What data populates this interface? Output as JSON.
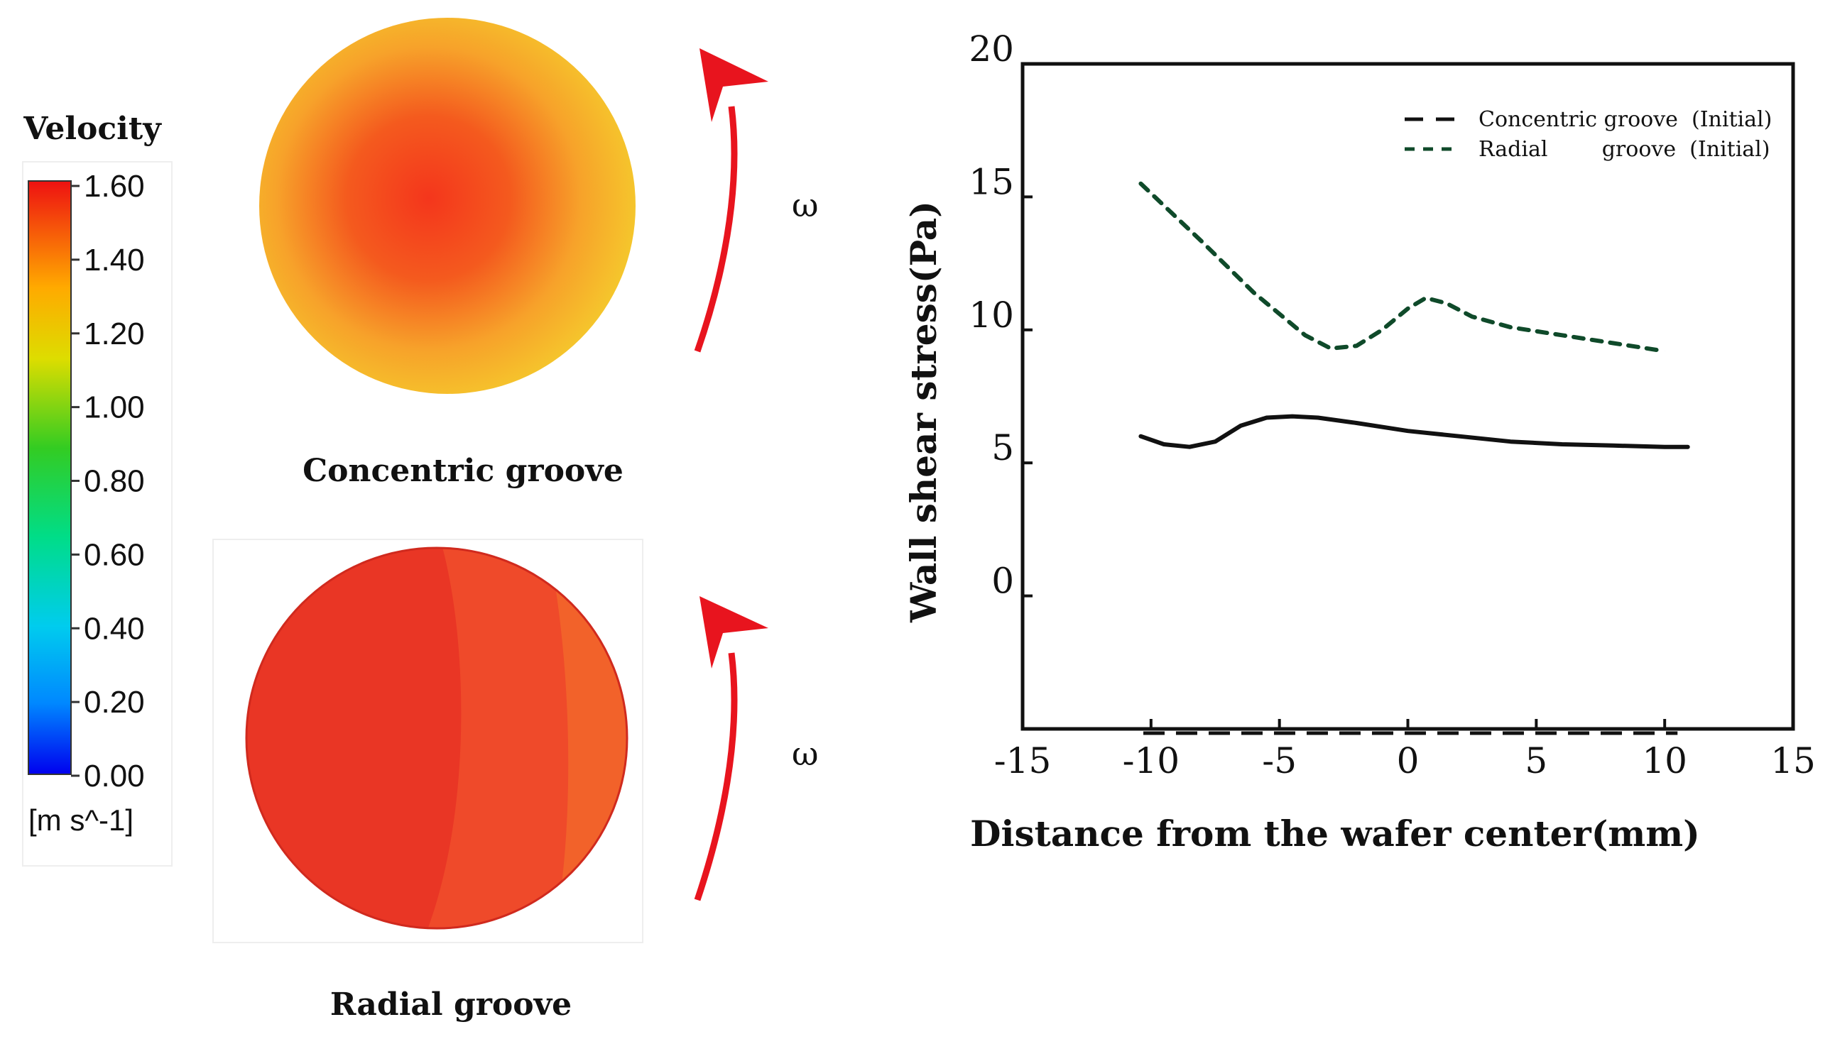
{
  "colorbar": {
    "title": "Velocity",
    "ticks": [
      "1.60",
      "1.40",
      "1.20",
      "1.00",
      "0.80",
      "0.60",
      "0.40",
      "0.20",
      "0.00"
    ],
    "unit": "[m s^-1]",
    "min": 0.0,
    "max": 1.6
  },
  "panels": {
    "concentric": {
      "label": "Concentric groove",
      "omega": "ω"
    },
    "radial": {
      "label": "Radial groove",
      "omega": "ω"
    }
  },
  "colors": {
    "arrow": "#e8141e",
    "concentric_series": "#111111",
    "radial_series": "#0f4a2a",
    "axis": "#111111"
  },
  "chart_data": {
    "type": "line",
    "title": "",
    "xlabel": "Distance from the wafer center(mm)",
    "ylabel": "Wall shear stress(Pa)",
    "xlim": [
      -15,
      15
    ],
    "ylim": [
      -5,
      20
    ],
    "xticks": [
      -15,
      -10,
      -5,
      0,
      5,
      10,
      15
    ],
    "yticks": [
      0,
      5,
      10,
      15,
      20
    ],
    "legend_position": "top-right",
    "series": [
      {
        "name": "Concentric groove  (Initial)",
        "style": "dashed",
        "x": [
          -10.4,
          -9.5,
          -8.5,
          -7.5,
          -6.5,
          -5.5,
          -4.5,
          -3.5,
          -2,
          0,
          2,
          4,
          6,
          8,
          10,
          10.9
        ],
        "y": [
          6.0,
          5.7,
          5.6,
          5.8,
          6.4,
          6.7,
          6.75,
          6.7,
          6.5,
          6.2,
          6.0,
          5.8,
          5.7,
          5.65,
          5.6,
          5.6
        ]
      },
      {
        "name": "Radial        groove  (Initial)",
        "style": "dotted",
        "x": [
          -10.4,
          -8,
          -6,
          -4,
          -3,
          -2,
          -1,
          0,
          0.7,
          1.5,
          2.5,
          4,
          6,
          8,
          10
        ],
        "y": [
          15.5,
          13.3,
          11.4,
          9.8,
          9.3,
          9.4,
          10.0,
          10.8,
          11.2,
          11.0,
          10.5,
          10.1,
          9.8,
          9.5,
          9.2
        ]
      }
    ]
  }
}
